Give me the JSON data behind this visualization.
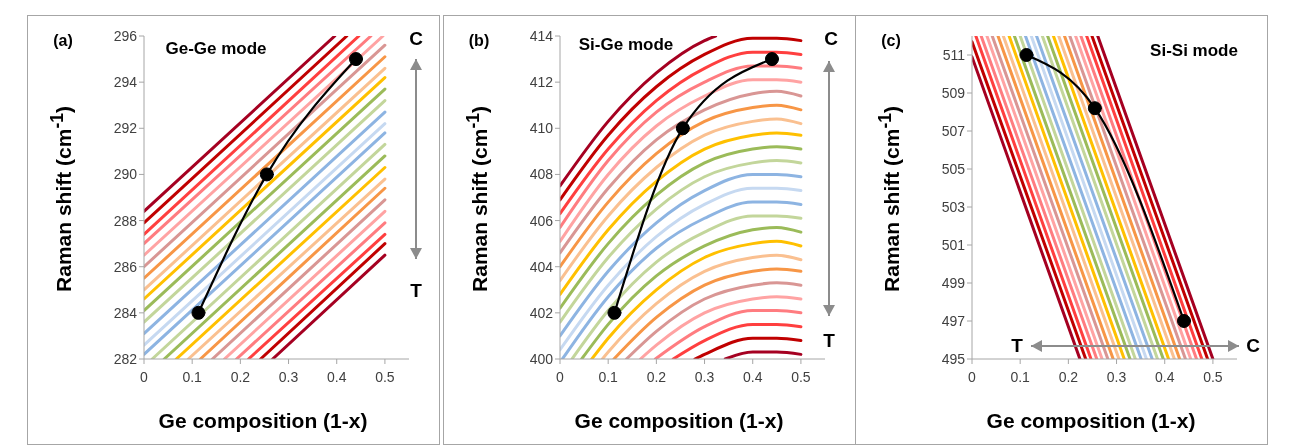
{
  "chart_data": [
    {
      "type": "line",
      "title": "(a)",
      "xlabel": "Ge composition (1-x)",
      "ylabel": "Raman shift (cm$^{-1}$)",
      "annotations": [
        "Ge-Ge mode",
        "C",
        "T"
      ],
      "xlim": [
        0,
        0.55
      ],
      "xticks": [
        0,
        0.1,
        0.2,
        0.3,
        0.4,
        0.5
      ],
      "ylim": [
        282,
        296
      ],
      "yticks": [
        282,
        284,
        286,
        288,
        290,
        292,
        294,
        296
      ],
      "series": [
        {
          "color": "#a50021",
          "x": [
            0,
            0.396
          ],
          "values": [
            288.4,
            296
          ]
        },
        {
          "color": "#c00000",
          "x": [
            0,
            0.421
          ],
          "values": [
            287.9,
            296
          ]
        },
        {
          "color": "#ff3f3f",
          "x": [
            0,
            0.446
          ],
          "values": [
            287.4,
            296
          ]
        },
        {
          "color": "#ff7c80",
          "x": [
            0,
            0.471
          ],
          "values": [
            287,
            296
          ]
        },
        {
          "color": "#ffa3a3",
          "x": [
            0,
            0.496
          ],
          "values": [
            286.5,
            296
          ]
        },
        {
          "color": "#d99694",
          "x": [
            0,
            0.5
          ],
          "values": [
            286,
            295.6
          ]
        },
        {
          "color": "#f79646",
          "x": [
            0,
            0.5
          ],
          "values": [
            285.5,
            295.1
          ]
        },
        {
          "color": "#fac090",
          "x": [
            0,
            0.5
          ],
          "values": [
            285,
            294.6
          ]
        },
        {
          "color": "#ffc000",
          "x": [
            0,
            0.5
          ],
          "values": [
            284.6,
            294.2
          ]
        },
        {
          "color": "#9bbb59",
          "x": [
            0,
            0.5
          ],
          "values": [
            284.1,
            293.7
          ]
        },
        {
          "color": "#c3d69b",
          "x": [
            0,
            0.5
          ],
          "values": [
            283.6,
            293.2
          ]
        },
        {
          "color": "#8db4e2",
          "x": [
            0,
            0.5
          ],
          "values": [
            283.1,
            292.7
          ]
        },
        {
          "color": "#c6d9f1",
          "x": [
            0,
            0.5
          ],
          "values": [
            282.6,
            292.2
          ]
        },
        {
          "color": "#8db4e2",
          "x": [
            0,
            0.5
          ],
          "values": [
            282.2,
            291.8
          ]
        },
        {
          "color": "#c3d69b",
          "x": [
            0.017,
            0.5
          ],
          "values": [
            282,
            291.3
          ]
        },
        {
          "color": "#9bbb59",
          "x": [
            0.042,
            0.5
          ],
          "values": [
            282,
            290.8
          ]
        },
        {
          "color": "#ffc000",
          "x": [
            0.067,
            0.5
          ],
          "values": [
            282,
            290.3
          ]
        },
        {
          "color": "#fac090",
          "x": [
            0.092,
            0.5
          ],
          "values": [
            282,
            289.8
          ]
        },
        {
          "color": "#f79646",
          "x": [
            0.117,
            0.5
          ],
          "values": [
            282,
            289.4
          ]
        },
        {
          "color": "#d99694",
          "x": [
            0.142,
            0.5
          ],
          "values": [
            282,
            288.9
          ]
        },
        {
          "color": "#ffa3a3",
          "x": [
            0.167,
            0.5
          ],
          "values": [
            282,
            288.4
          ]
        },
        {
          "color": "#ff7c80",
          "x": [
            0.192,
            0.5
          ],
          "values": [
            282,
            287.9
          ]
        },
        {
          "color": "#ff3f3f",
          "x": [
            0.217,
            0.5
          ],
          "values": [
            282,
            287.4
          ]
        },
        {
          "color": "#c00000",
          "x": [
            0.242,
            0.5
          ],
          "values": [
            282,
            287
          ]
        },
        {
          "color": "#a50021",
          "x": [
            0.267,
            0.5
          ],
          "values": [
            282,
            286.5
          ]
        },
        {
          "color": "#000000",
          "x": [
            0.113,
            0.255,
            0.44
          ],
          "values": [
            284,
            290,
            295
          ],
          "marker": "circle"
        }
      ]
    },
    {
      "type": "line",
      "title": "(b)",
      "xlabel": "Ge composition (1-x)",
      "ylabel": "Raman shift (cm$^{-1}$)",
      "annotations": [
        "Si-Ge mode",
        "C",
        "T"
      ],
      "xlim": [
        0,
        0.55
      ],
      "xticks": [
        0,
        0.1,
        0.2,
        0.3,
        0.4,
        0.5
      ],
      "ylim": [
        400,
        414
      ],
      "yticks": [
        400,
        402,
        404,
        406,
        408,
        410,
        412,
        414
      ],
      "series": [
        {
          "color": "#a50021",
          "x": [
            0,
            0.1,
            0.2,
            0.3,
            0.323
          ],
          "values": [
            407.5,
            410.3,
            412.4,
            413.8,
            414
          ]
        },
        {
          "color": "#c00000",
          "x": [
            0,
            0.1,
            0.2,
            0.3,
            0.4,
            0.45,
            0.5
          ],
          "values": [
            406.9,
            409.7,
            411.8,
            413.2,
            413.9,
            413.9,
            413.8
          ]
        },
        {
          "color": "#ff3f3f",
          "x": [
            0,
            0.1,
            0.2,
            0.3,
            0.4,
            0.45,
            0.5
          ],
          "values": [
            406.3,
            409.1,
            411.2,
            412.6,
            413.3,
            413.3,
            413.2
          ]
        },
        {
          "color": "#ff7c80",
          "x": [
            0,
            0.1,
            0.2,
            0.3,
            0.4,
            0.45,
            0.5
          ],
          "values": [
            405.7,
            408.6,
            410.7,
            412,
            412.7,
            412.7,
            412.6
          ]
        },
        {
          "color": "#ffa3a3",
          "x": [
            0,
            0.1,
            0.2,
            0.3,
            0.4,
            0.45,
            0.5
          ],
          "values": [
            405.1,
            408,
            410.1,
            411.4,
            412.1,
            412.1,
            412
          ]
        },
        {
          "color": "#d99694",
          "x": [
            0,
            0.1,
            0.2,
            0.3,
            0.4,
            0.45,
            0.5
          ],
          "values": [
            404.6,
            407.4,
            409.5,
            410.8,
            411.5,
            411.6,
            411.4
          ]
        },
        {
          "color": "#f79646",
          "x": [
            0,
            0.1,
            0.2,
            0.3,
            0.4,
            0.45,
            0.5
          ],
          "values": [
            404,
            406.8,
            408.9,
            410.3,
            410.9,
            411,
            410.8
          ]
        },
        {
          "color": "#fac090",
          "x": [
            0,
            0.1,
            0.2,
            0.3,
            0.4,
            0.45,
            0.5
          ],
          "values": [
            403.4,
            406.2,
            408.3,
            409.7,
            410.3,
            410.4,
            410.2
          ]
        },
        {
          "color": "#ffc000",
          "x": [
            0,
            0.1,
            0.2,
            0.3,
            0.4,
            0.45,
            0.5
          ],
          "values": [
            402.8,
            405.6,
            407.7,
            409.1,
            409.7,
            409.8,
            409.7
          ]
        },
        {
          "color": "#9bbb59",
          "x": [
            0,
            0.1,
            0.2,
            0.3,
            0.4,
            0.45,
            0.5
          ],
          "values": [
            402.2,
            405,
            407.1,
            408.5,
            409.1,
            409.2,
            409.1
          ]
        },
        {
          "color": "#c3d69b",
          "x": [
            0,
            0.1,
            0.2,
            0.3,
            0.4,
            0.45,
            0.5
          ],
          "values": [
            401.6,
            404.4,
            406.5,
            407.9,
            408.5,
            408.6,
            408.5
          ]
        },
        {
          "color": "#8db4e2",
          "x": [
            0,
            0.1,
            0.2,
            0.3,
            0.4,
            0.45,
            0.5
          ],
          "values": [
            401,
            403.8,
            405.9,
            407.3,
            408,
            408,
            407.9
          ]
        },
        {
          "color": "#c6d9f1",
          "x": [
            0,
            0.1,
            0.2,
            0.3,
            0.4,
            0.45,
            0.5
          ],
          "values": [
            400.4,
            403.2,
            405.3,
            406.7,
            407.4,
            407.4,
            407.3
          ]
        },
        {
          "color": "#8db4e2",
          "x": [
            0.005,
            0.1,
            0.2,
            0.3,
            0.4,
            0.45,
            0.5
          ],
          "values": [
            400,
            402.7,
            404.8,
            406.1,
            406.8,
            406.8,
            406.7
          ]
        },
        {
          "color": "#c3d69b",
          "x": [
            0.025,
            0.1,
            0.2,
            0.3,
            0.4,
            0.45,
            0.5
          ],
          "values": [
            400,
            402.1,
            404.2,
            405.5,
            406.2,
            406.2,
            406.1
          ]
        },
        {
          "color": "#9bbb59",
          "x": [
            0.045,
            0.1,
            0.2,
            0.3,
            0.4,
            0.45,
            0.5
          ],
          "values": [
            400,
            401.5,
            403.6,
            404.9,
            405.6,
            405.7,
            405.5
          ]
        },
        {
          "color": "#ffc000",
          "x": [
            0.066,
            0.1,
            0.2,
            0.3,
            0.4,
            0.45,
            0.5
          ],
          "values": [
            400,
            400.9,
            403,
            404.4,
            405,
            405.1,
            404.9
          ]
        },
        {
          "color": "#fac090",
          "x": [
            0.088,
            0.1,
            0.2,
            0.3,
            0.4,
            0.45,
            0.5
          ],
          "values": [
            400,
            400.3,
            402.4,
            403.8,
            404.4,
            404.5,
            404.3
          ]
        },
        {
          "color": "#f79646",
          "x": [
            0.112,
            0.2,
            0.3,
            0.4,
            0.45,
            0.5
          ],
          "values": [
            400,
            401.8,
            403.2,
            403.8,
            403.9,
            403.8
          ]
        },
        {
          "color": "#d99694",
          "x": [
            0.138,
            0.2,
            0.3,
            0.4,
            0.45,
            0.5
          ],
          "values": [
            400,
            401.2,
            402.6,
            403.2,
            403.3,
            403.2
          ]
        },
        {
          "color": "#ffa3a3",
          "x": [
            0.167,
            0.2,
            0.3,
            0.4,
            0.45,
            0.5
          ],
          "values": [
            400,
            400.6,
            402,
            402.6,
            402.7,
            402.6
          ]
        },
        {
          "color": "#ff7c80",
          "x": [
            0.198,
            0.3,
            0.4,
            0.45,
            0.5
          ],
          "values": [
            400,
            401.4,
            402.1,
            402.1,
            402
          ]
        },
        {
          "color": "#ff3f3f",
          "x": [
            0.235,
            0.3,
            0.4,
            0.45,
            0.5
          ],
          "values": [
            400,
            400.8,
            401.5,
            401.5,
            401.4
          ]
        },
        {
          "color": "#c00000",
          "x": [
            0.28,
            0.3,
            0.4,
            0.45,
            0.5
          ],
          "values": [
            400,
            400.2,
            400.9,
            400.9,
            400.8
          ]
        },
        {
          "color": "#a50021",
          "x": [
            0.343,
            0.4,
            0.45,
            0.5
          ],
          "values": [
            400,
            400.3,
            400.3,
            400.2
          ]
        },
        {
          "color": "#000000",
          "x": [
            0.113,
            0.255,
            0.44
          ],
          "values": [
            402,
            410,
            413
          ],
          "marker": "circle"
        }
      ]
    },
    {
      "type": "line",
      "title": "(c)",
      "xlabel": "Ge composition (1-x)",
      "ylabel": "Raman shift (cm$^{-1}$)",
      "annotations": [
        "Si-Si mode",
        "T",
        "C"
      ],
      "xlim": [
        0,
        0.55
      ],
      "xticks": [
        0,
        0.1,
        0.2,
        0.3,
        0.4,
        0.5
      ],
      "ylim": [
        495,
        512
      ],
      "yticks": [
        495,
        497,
        499,
        501,
        503,
        505,
        507,
        509,
        511
      ],
      "series": [
        {
          "color": "#a50021",
          "x": [
            0,
            0.224
          ],
          "values": [
            510.9,
            495
          ]
        },
        {
          "color": "#c00000",
          "x": [
            0,
            0.236
          ],
          "values": [
            511.7,
            495
          ]
        },
        {
          "color": "#ff3f3f",
          "x": [
            0.008,
            0.247
          ],
          "values": [
            512,
            495
          ]
        },
        {
          "color": "#ff7c80",
          "x": [
            0.019,
            0.259
          ],
          "values": [
            512,
            495
          ]
        },
        {
          "color": "#ffa3a3",
          "x": [
            0.031,
            0.27
          ],
          "values": [
            512,
            495
          ]
        },
        {
          "color": "#d99694",
          "x": [
            0.042,
            0.282
          ],
          "values": [
            512,
            495
          ]
        },
        {
          "color": "#f79646",
          "x": [
            0.054,
            0.293
          ],
          "values": [
            512,
            495
          ]
        },
        {
          "color": "#fac090",
          "x": [
            0.065,
            0.305
          ],
          "values": [
            512,
            495
          ]
        },
        {
          "color": "#ffc000",
          "x": [
            0.077,
            0.316
          ],
          "values": [
            512,
            495
          ]
        },
        {
          "color": "#9bbb59",
          "x": [
            0.088,
            0.328
          ],
          "values": [
            512,
            495
          ]
        },
        {
          "color": "#c3d69b",
          "x": [
            0.1,
            0.339
          ],
          "values": [
            512,
            495
          ]
        },
        {
          "color": "#8db4e2",
          "x": [
            0.111,
            0.351
          ],
          "values": [
            512,
            495
          ]
        },
        {
          "color": "#c6d9f1",
          "x": [
            0.123,
            0.362
          ],
          "values": [
            512,
            495
          ]
        },
        {
          "color": "#8db4e2",
          "x": [
            0.134,
            0.374
          ],
          "values": [
            512,
            495
          ]
        },
        {
          "color": "#c3d69b",
          "x": [
            0.146,
            0.385
          ],
          "values": [
            512,
            495
          ]
        },
        {
          "color": "#9bbb59",
          "x": [
            0.157,
            0.397
          ],
          "values": [
            512,
            495
          ]
        },
        {
          "color": "#ffc000",
          "x": [
            0.169,
            0.408
          ],
          "values": [
            512,
            495
          ]
        },
        {
          "color": "#fac090",
          "x": [
            0.18,
            0.42
          ],
          "values": [
            512,
            495
          ]
        },
        {
          "color": "#f79646",
          "x": [
            0.192,
            0.431
          ],
          "values": [
            512,
            495
          ]
        },
        {
          "color": "#d99694",
          "x": [
            0.203,
            0.443
          ],
          "values": [
            512,
            495
          ]
        },
        {
          "color": "#ffa3a3",
          "x": [
            0.215,
            0.454
          ],
          "values": [
            512,
            495
          ]
        },
        {
          "color": "#ff7c80",
          "x": [
            0.226,
            0.466
          ],
          "values": [
            512,
            495
          ]
        },
        {
          "color": "#ff3f3f",
          "x": [
            0.238,
            0.477
          ],
          "values": [
            512,
            495
          ]
        },
        {
          "color": "#c00000",
          "x": [
            0.249,
            0.489
          ],
          "values": [
            512,
            495
          ]
        },
        {
          "color": "#a50021",
          "x": [
            0.261,
            0.5
          ],
          "values": [
            512,
            495
          ]
        },
        {
          "color": "#000000",
          "x": [
            0.113,
            0.255,
            0.44
          ],
          "values": [
            511,
            508.2,
            497
          ],
          "marker": "circle"
        }
      ]
    }
  ]
}
